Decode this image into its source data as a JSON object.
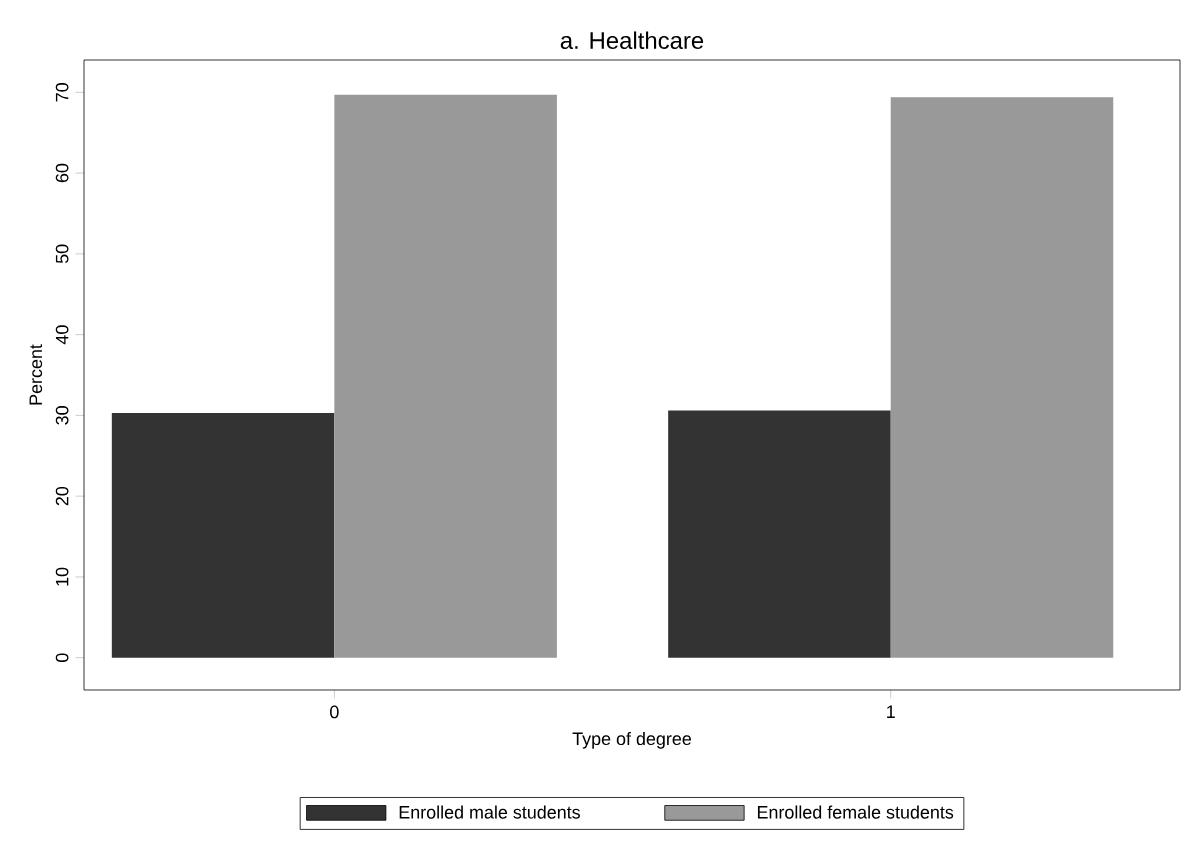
{
  "chart_data": {
    "type": "bar",
    "title": "a. Healthcare",
    "xlabel": "Type of degree",
    "ylabel": "Percent",
    "categories": [
      "0",
      "1"
    ],
    "series": [
      {
        "name": "Enrolled male students",
        "color": "#333333",
        "values": [
          30.3,
          30.6
        ]
      },
      {
        "name": "Enrolled female students",
        "color": "#999999",
        "values": [
          69.7,
          69.4
        ]
      }
    ],
    "ylim": [
      0,
      70
    ],
    "yticks": [
      0,
      10,
      20,
      30,
      40,
      50,
      60,
      70
    ],
    "legend": "bottom"
  }
}
